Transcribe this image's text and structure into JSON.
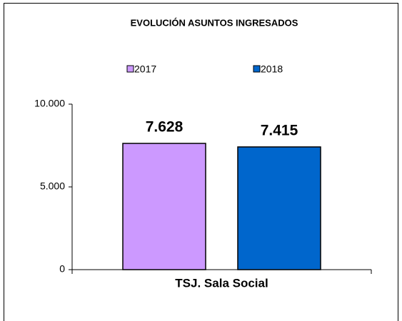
{
  "chart_data": {
    "type": "bar",
    "title": "EVOLUCIÓN ASUNTOS INGRESADOS",
    "categories": [
      "TSJ. Sala Social"
    ],
    "series": [
      {
        "name": "2017",
        "color": "#cc99ff",
        "values": [
          7628
        ],
        "value_labels": [
          "7.628"
        ]
      },
      {
        "name": "2018",
        "color": "#0066cc",
        "values": [
          7415
        ],
        "value_labels": [
          "7.415"
        ]
      }
    ],
    "ylim": [
      0,
      10000
    ],
    "yticks": [
      0,
      {
        "value": 5000,
        "label": "5.000"
      },
      {
        "value": 10000,
        "label": "10.000"
      }
    ],
    "grid": false,
    "legend": "top"
  }
}
